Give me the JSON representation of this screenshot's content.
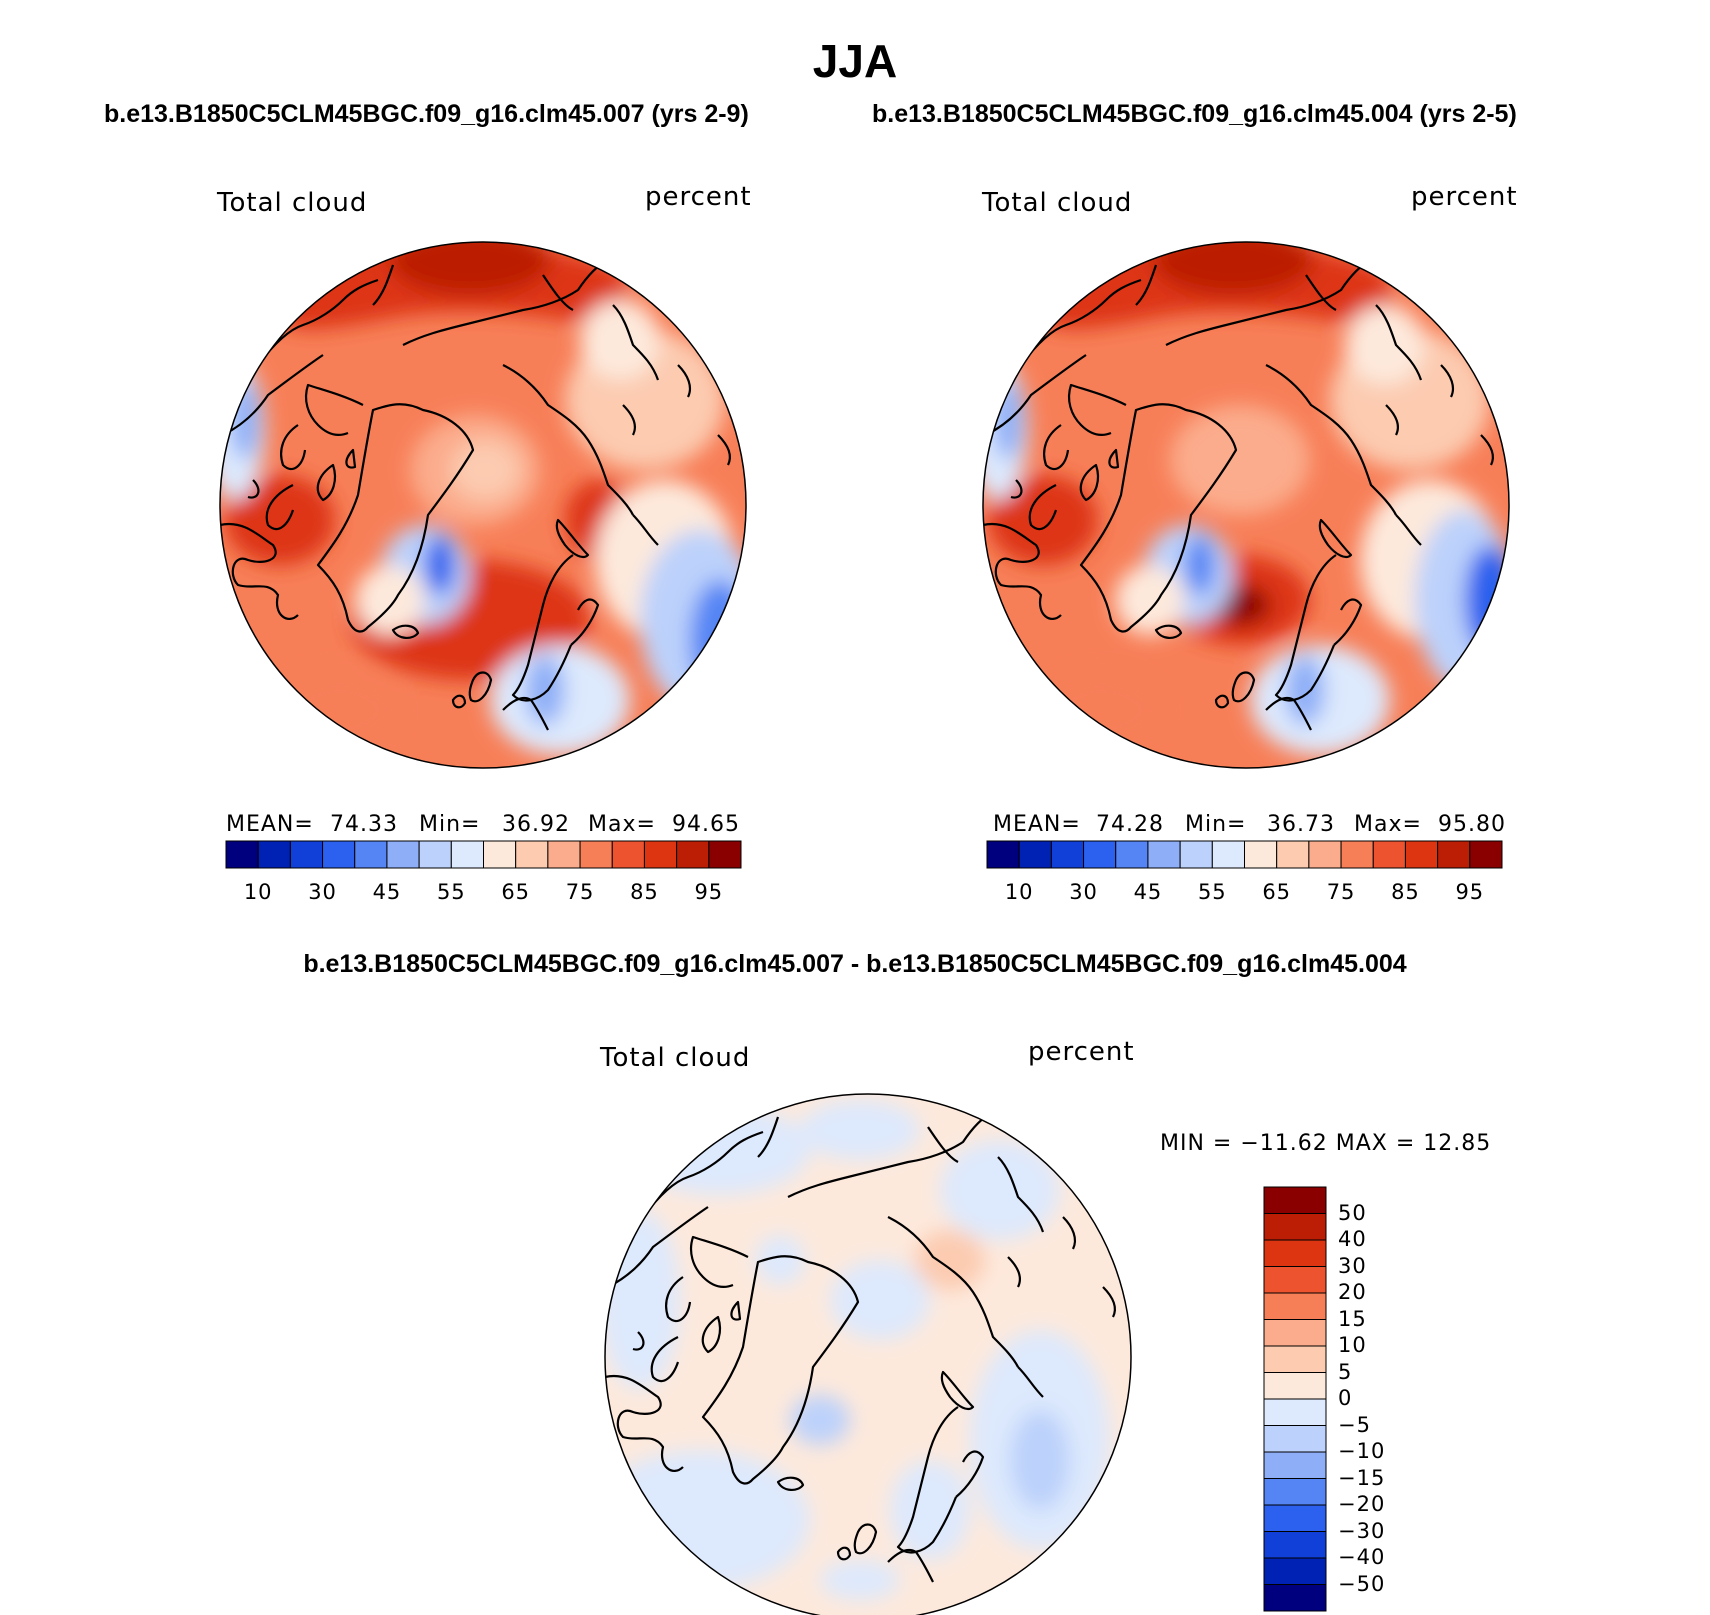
{
  "title": "JJA",
  "panels": {
    "left": {
      "subtitle": "b.e13.B1850C5CLM45BGC.f09_g16.clm45.007 (yrs 2-9)",
      "variable": "Total cloud",
      "units": "percent",
      "stats": {
        "mean_label": "MEAN=",
        "mean": "74.33",
        "min_label": "Min=",
        "min": "36.92",
        "max_label": "Max=",
        "max": "94.65"
      }
    },
    "right": {
      "subtitle": "b.e13.B1850C5CLM45BGC.f09_g16.clm45.004 (yrs 2-5)",
      "variable": "Total cloud",
      "units": "percent",
      "stats": {
        "mean_label": "MEAN=",
        "mean": "74.28",
        "min_label": "Min=",
        "min": "36.73",
        "max_label": "Max=",
        "max": "95.80"
      }
    },
    "diff": {
      "subtitle": "b.e13.B1850C5CLM45BGC.f09_g16.clm45.007 - b.e13.B1850C5CLM45BGC.f09_g16.clm45.004",
      "variable": "Total cloud",
      "units": "percent",
      "minmax": "MIN = −11.62 MAX =   12.85"
    }
  },
  "abs_colorbar": {
    "colors": [
      "#00007f",
      "#0022b4",
      "#1040d8",
      "#2c60ee",
      "#5585f4",
      "#8eaff7",
      "#bcd1fb",
      "#dde9fd",
      "#fde9dc",
      "#fccbb0",
      "#fbac8c",
      "#f77f58",
      "#ee5330",
      "#dd3412",
      "#bb1d05",
      "#8a0000"
    ],
    "tick_labels": [
      "10",
      "30",
      "45",
      "55",
      "65",
      "75",
      "85",
      "95"
    ]
  },
  "diff_colorbar": {
    "colors": [
      "#00007f",
      "#0022b4",
      "#1040d8",
      "#2c60ee",
      "#5585f4",
      "#8eaff7",
      "#bcd1fb",
      "#dde9fd",
      "#fde9dc",
      "#fccbb0",
      "#fbac8c",
      "#f77f58",
      "#ee5330",
      "#dd3412",
      "#bb1d05",
      "#8a0000"
    ],
    "tick_labels": [
      "50",
      "40",
      "30",
      "20",
      "15",
      "10",
      "5",
      "0",
      "−5",
      "−10",
      "−15",
      "−20",
      "−30",
      "−40",
      "−50"
    ]
  },
  "colors": {
    "coast": "#000000",
    "outline": "#000000"
  }
}
